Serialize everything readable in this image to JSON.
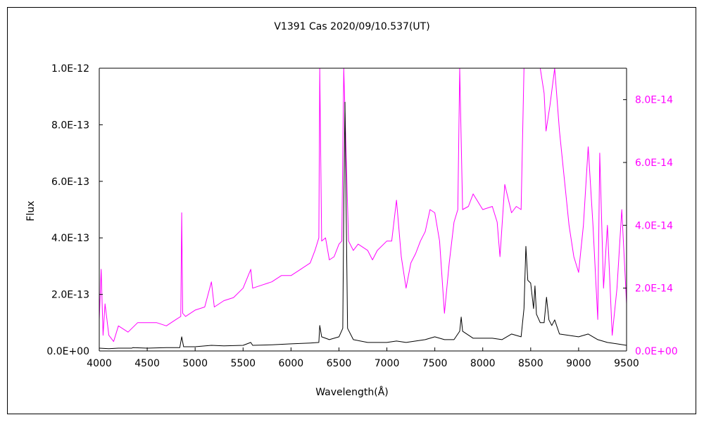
{
  "chart_data": {
    "type": "line",
    "title": "V1391 Cas   2020/09/10.537(UT)",
    "xlabel": "Wavelength(Å)",
    "ylabel": "Flux",
    "xlim": [
      4000,
      9500
    ],
    "ylim_left": [
      0,
      1e-12
    ],
    "ylim_right": [
      0,
      9e-14
    ],
    "x_ticks": [
      4000,
      4500,
      5000,
      5500,
      6000,
      6500,
      7000,
      7500,
      8000,
      8500,
      9000,
      9500
    ],
    "x_tick_labels": [
      "4000",
      "4500",
      "5000",
      "5500",
      "6000",
      "6500",
      "7000",
      "7500",
      "8000",
      "8500",
      "9000",
      "9500"
    ],
    "y_left_ticks": [
      0,
      2e-13,
      4e-13,
      6e-13,
      8e-13,
      1e-12
    ],
    "y_left_tick_labels": [
      "0.0E+00",
      "2.0E-13",
      "4.0E-13",
      "6.0E-13",
      "8.0E-13",
      "1.0E-12"
    ],
    "y_right_ticks": [
      0,
      2e-14,
      4e-14,
      6e-14,
      8e-14
    ],
    "y_right_tick_labels": [
      "0.0E+00",
      "2.0E-14",
      "4.0E-14",
      "6.0E-14",
      "8.0E-14"
    ],
    "grid": false,
    "colors": {
      "left_series": "#000000",
      "right_series": "#ff00ff"
    },
    "series": [
      {
        "axis": "left",
        "color": "#000000",
        "points": [
          [
            4000,
            1e-14
          ],
          [
            4100,
            8e-15
          ],
          [
            4200,
            1e-14
          ],
          [
            4340,
            1e-14
          ],
          [
            4350,
            1.2e-14
          ],
          [
            4500,
            1e-14
          ],
          [
            4700,
            1.2e-14
          ],
          [
            4840,
            1.2e-14
          ],
          [
            4860,
            5e-14
          ],
          [
            4880,
            1.5e-14
          ],
          [
            5000,
            1.5e-14
          ],
          [
            5170,
            2e-14
          ],
          [
            5300,
            1.8e-14
          ],
          [
            5500,
            2e-14
          ],
          [
            5580,
            3e-14
          ],
          [
            5600,
            2e-14
          ],
          [
            5800,
            2.2e-14
          ],
          [
            6000,
            2.5e-14
          ],
          [
            6200,
            2.8e-14
          ],
          [
            6290,
            3e-14
          ],
          [
            6300,
            9e-14
          ],
          [
            6320,
            5e-14
          ],
          [
            6360,
            4.5e-14
          ],
          [
            6400,
            4e-14
          ],
          [
            6500,
            5e-14
          ],
          [
            6540,
            8e-14
          ],
          [
            6550,
            5e-13
          ],
          [
            6563,
            8.8e-13
          ],
          [
            6575,
            5e-13
          ],
          [
            6590,
            8e-14
          ],
          [
            6650,
            4e-14
          ],
          [
            6800,
            3e-14
          ],
          [
            7000,
            3e-14
          ],
          [
            7100,
            3.5e-14
          ],
          [
            7200,
            3e-14
          ],
          [
            7400,
            4e-14
          ],
          [
            7500,
            5e-14
          ],
          [
            7600,
            4e-14
          ],
          [
            7700,
            4e-14
          ],
          [
            7760,
            7e-14
          ],
          [
            7775,
            1.2e-13
          ],
          [
            7790,
            7e-14
          ],
          [
            7900,
            4.5e-14
          ],
          [
            8100,
            4.5e-14
          ],
          [
            8200,
            4e-14
          ],
          [
            8300,
            6e-14
          ],
          [
            8400,
            5e-14
          ],
          [
            8430,
            1.5e-13
          ],
          [
            8450,
            3.7e-13
          ],
          [
            8470,
            2.5e-13
          ],
          [
            8500,
            2.4e-13
          ],
          [
            8530,
            1.5e-13
          ],
          [
            8545,
            2.3e-13
          ],
          [
            8560,
            1.3e-13
          ],
          [
            8600,
            1e-13
          ],
          [
            8640,
            1e-13
          ],
          [
            8665,
            1.9e-13
          ],
          [
            8690,
            1.1e-13
          ],
          [
            8720,
            9e-14
          ],
          [
            8750,
            1.1e-13
          ],
          [
            8800,
            6e-14
          ],
          [
            9000,
            5e-14
          ],
          [
            9100,
            6e-14
          ],
          [
            9200,
            4e-14
          ],
          [
            9300,
            3e-14
          ],
          [
            9400,
            2.5e-14
          ],
          [
            9500,
            2e-14
          ]
        ]
      },
      {
        "axis": "right",
        "color": "#ff00ff",
        "points": [
          [
            4000,
            1e-14
          ],
          [
            4020,
            2.6e-14
          ],
          [
            4040,
            5e-15
          ],
          [
            4060,
            1.5e-14
          ],
          [
            4100,
            5e-15
          ],
          [
            4150,
            3e-15
          ],
          [
            4200,
            8e-15
          ],
          [
            4300,
            6e-15
          ],
          [
            4400,
            9e-15
          ],
          [
            4500,
            9e-15
          ],
          [
            4600,
            9e-15
          ],
          [
            4700,
            8e-15
          ],
          [
            4800,
            1e-14
          ],
          [
            4850,
            1.1e-14
          ],
          [
            4860,
            4.4e-14
          ],
          [
            4870,
            1.2e-14
          ],
          [
            4900,
            1.1e-14
          ],
          [
            5000,
            1.3e-14
          ],
          [
            5100,
            1.4e-14
          ],
          [
            5170,
            2.2e-14
          ],
          [
            5200,
            1.4e-14
          ],
          [
            5300,
            1.6e-14
          ],
          [
            5400,
            1.7e-14
          ],
          [
            5500,
            2e-14
          ],
          [
            5580,
            2.6e-14
          ],
          [
            5600,
            2e-14
          ],
          [
            5700,
            2.1e-14
          ],
          [
            5800,
            2.2e-14
          ],
          [
            5900,
            2.4e-14
          ],
          [
            6000,
            2.4e-14
          ],
          [
            6100,
            2.6e-14
          ],
          [
            6200,
            2.8e-14
          ],
          [
            6250,
            3.2e-14
          ],
          [
            6290,
            3.6e-14
          ],
          [
            6300,
            9e-14
          ],
          [
            6320,
            3.5e-14
          ],
          [
            6360,
            3.6e-14
          ],
          [
            6400,
            2.9e-14
          ],
          [
            6450,
            3e-14
          ],
          [
            6500,
            3.4e-14
          ],
          [
            6530,
            3.5e-14
          ],
          [
            6550,
            9e-14
          ],
          [
            6600,
            3.5e-14
          ],
          [
            6650,
            3.2e-14
          ],
          [
            6700,
            3.4e-14
          ],
          [
            6800,
            3.2e-14
          ],
          [
            6850,
            2.9e-14
          ],
          [
            6900,
            3.2e-14
          ],
          [
            7000,
            3.5e-14
          ],
          [
            7050,
            3.5e-14
          ],
          [
            7100,
            4.8e-14
          ],
          [
            7150,
            3e-14
          ],
          [
            7200,
            2e-14
          ],
          [
            7250,
            2.8e-14
          ],
          [
            7300,
            3.1e-14
          ],
          [
            7350,
            3.5e-14
          ],
          [
            7400,
            3.8e-14
          ],
          [
            7450,
            4.5e-14
          ],
          [
            7500,
            4.4e-14
          ],
          [
            7550,
            3.5e-14
          ],
          [
            7600,
            1.2e-14
          ],
          [
            7650,
            2.8e-14
          ],
          [
            7700,
            4.1e-14
          ],
          [
            7740,
            4.5e-14
          ],
          [
            7760,
            9e-14
          ],
          [
            7790,
            4.5e-14
          ],
          [
            7850,
            4.6e-14
          ],
          [
            7900,
            5e-14
          ],
          [
            8000,
            4.5e-14
          ],
          [
            8100,
            4.6e-14
          ],
          [
            8150,
            4.1e-14
          ],
          [
            8180,
            3e-14
          ],
          [
            8230,
            5.3e-14
          ],
          [
            8300,
            4.4e-14
          ],
          [
            8350,
            4.6e-14
          ],
          [
            8400,
            4.5e-14
          ],
          [
            8430,
            9e-14
          ],
          [
            8500,
            9e-14
          ],
          [
            8600,
            9e-14
          ],
          [
            8640,
            8.2e-14
          ],
          [
            8660,
            7e-14
          ],
          [
            8700,
            7.8e-14
          ],
          [
            8750,
            9e-14
          ],
          [
            8800,
            7e-14
          ],
          [
            8850,
            5.5e-14
          ],
          [
            8900,
            4e-14
          ],
          [
            8950,
            3e-14
          ],
          [
            9000,
            2.5e-14
          ],
          [
            9050,
            4e-14
          ],
          [
            9100,
            6.5e-14
          ],
          [
            9150,
            4e-14
          ],
          [
            9200,
            1e-14
          ],
          [
            9220,
            6.3e-14
          ],
          [
            9260,
            2e-14
          ],
          [
            9300,
            4e-14
          ],
          [
            9350,
            5e-15
          ],
          [
            9400,
            2e-14
          ],
          [
            9450,
            4.5e-14
          ],
          [
            9500,
            1.5e-14
          ]
        ]
      }
    ]
  }
}
